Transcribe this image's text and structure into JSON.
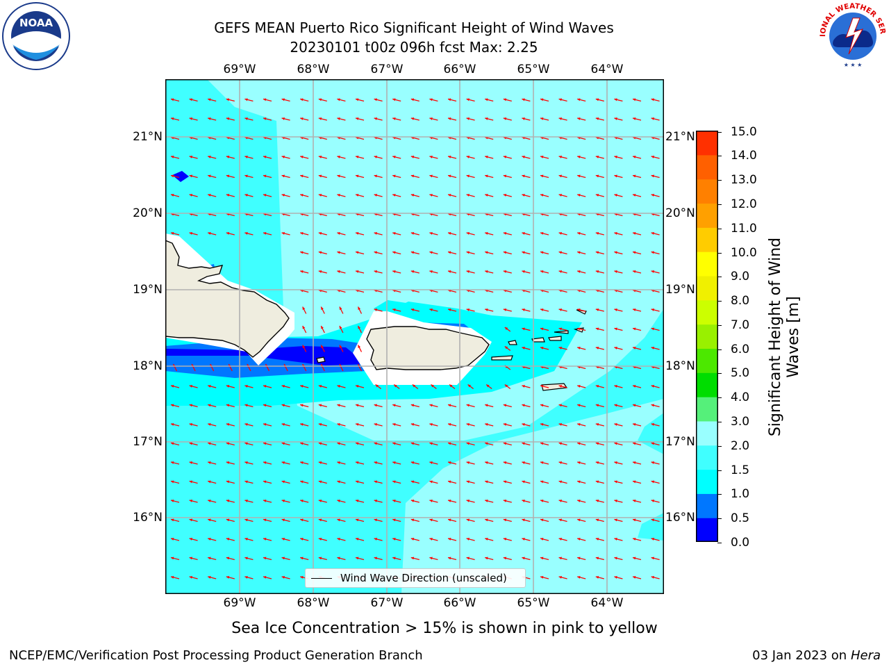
{
  "title": {
    "line1": "GEFS MEAN Puerto Rico Significant Height of Wind Waves",
    "line2": "20230101 t00z 096h fcst   Max: 2.25"
  },
  "logos": {
    "left": {
      "name": "noaa-logo",
      "text": "NOAA"
    },
    "right": {
      "name": "national-weather-service-logo",
      "text": "NATIONAL WEATHER SERVICE"
    }
  },
  "map": {
    "lon_ticks": [
      "69°W",
      "68°W",
      "67°W",
      "66°W",
      "65°W",
      "64°W"
    ],
    "lat_ticks": [
      "21°N",
      "20°N",
      "19°N",
      "18°N",
      "17°N",
      "16°N"
    ],
    "legend_label": "Wind Wave Direction (unscaled)",
    "arrow_color": "#ff0000",
    "land_color": "#efeddf"
  },
  "colorbar": {
    "label": "Significant Height of Wind Waves [m]",
    "ticks": [
      "15.0",
      "14.0",
      "13.0",
      "12.0",
      "11.0",
      "10.0",
      "9.0",
      "8.0",
      "7.0",
      "6.0",
      "5.0",
      "4.0",
      "3.0",
      "2.0",
      "1.5",
      "1.0",
      "0.5",
      "0.0"
    ],
    "colors": [
      "#0000ff",
      "#0077ff",
      "#00ffff",
      "#40ffff",
      "#99ffff",
      "#55f07a",
      "#00dd00",
      "#4ce800",
      "#99f000",
      "#ccff00",
      "#f0f000",
      "#ffff00",
      "#ffcc00",
      "#ffa000",
      "#ff8000",
      "#ff6000",
      "#ff3000"
    ]
  },
  "caption": "Sea Ice Concentration > 15% is shown in pink to yellow",
  "footer": {
    "left": "NCEP/EMC/Verification Post Processing Product Generation Branch",
    "right_date": "03 Jan 2023 on ",
    "right_host": "Hera"
  }
}
